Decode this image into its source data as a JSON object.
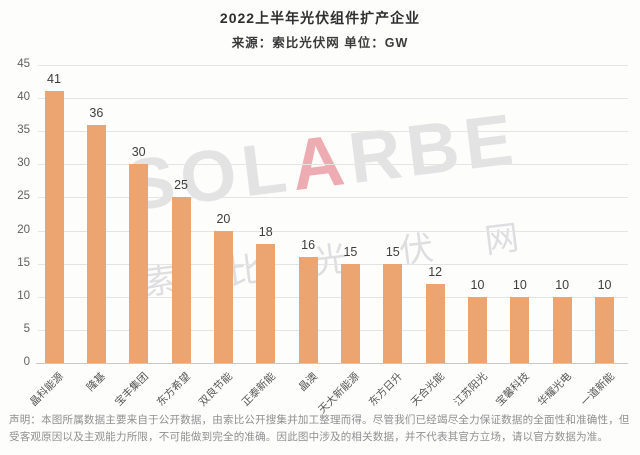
{
  "title": "2022上半年光伏组件扩产企业",
  "subtitle": "来源：索比光伏网 单位：GW",
  "watermark": {
    "latin_pre": "SOL",
    "latin_accent": "A",
    "latin_post": "RBE",
    "cn": "索比光伏网"
  },
  "disclaimer": "声明：本图所属数据主要来自于公开数据，由索比公开搜集并加工整理而得。尽管我们已经竭尽全力保证数据的全面性和准确性，但受客观原因以及主观能力所限，不可能做到完全的准确。因此图中涉及的相关数据，并不代表其官方立场，请以官方数据为准。",
  "colors": {
    "bar": "#eca471",
    "grid": "#e5e4e2",
    "axis": "#c8c7c5",
    "ytick": "#5f5f5f",
    "value_label": "#3d3d3d",
    "xlabel": "#555555"
  },
  "chart_data": {
    "type": "bar",
    "title": "2022上半年光伏组件扩产企业",
    "source": "索比光伏网",
    "unit": "GW",
    "categories": [
      "晶科能源",
      "隆基",
      "宝丰集团",
      "东方希望",
      "双良节能",
      "正泰新能",
      "晶澳",
      "天大新能源",
      "东方日升",
      "天合光能",
      "江苏阳光",
      "宝馨科技",
      "华耀光电",
      "一道新能"
    ],
    "values": [
      41,
      36,
      30,
      25,
      20,
      18,
      16,
      15,
      15,
      12,
      10,
      10,
      10,
      10
    ],
    "xlabel": "",
    "ylabel": "GW",
    "ylim": [
      0,
      45
    ],
    "ytick_step": 5,
    "grid": true,
    "legend": false,
    "bar_color": "#eca471"
  }
}
